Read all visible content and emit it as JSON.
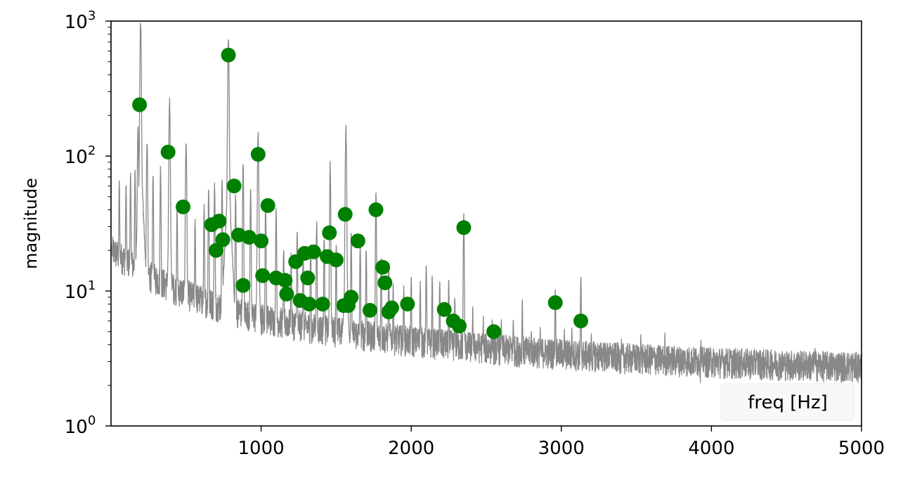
{
  "chart_data": {
    "type": "scatter",
    "title": "",
    "xlabel": "",
    "ylabel": "magnitude",
    "legend_label": "freq [Hz]",
    "legend_placement": "bottom-right",
    "xlim": [
      0,
      5000
    ],
    "ylim": [
      1,
      1000
    ],
    "yscale": "log",
    "grid": false,
    "xticks": [
      1000,
      2000,
      3000,
      4000,
      5000
    ],
    "yticks": [
      {
        "value": 1,
        "base": "10",
        "exp": "0"
      },
      {
        "value": 10,
        "base": "10",
        "exp": "1"
      },
      {
        "value": 100,
        "base": "10",
        "exp": "2"
      },
      {
        "value": 1000,
        "base": "10",
        "exp": "3"
      }
    ],
    "colors": {
      "spectrum": "#888888",
      "peaks": "#008000"
    },
    "spectrum_peaks": [
      {
        "x": 55,
        "y": 62
      },
      {
        "x": 100,
        "y": 58
      },
      {
        "x": 130,
        "y": 68
      },
      {
        "x": 160,
        "y": 75
      },
      {
        "x": 180,
        "y": 160
      },
      {
        "x": 197,
        "y": 950
      },
      {
        "x": 240,
        "y": 120
      },
      {
        "x": 280,
        "y": 70
      },
      {
        "x": 330,
        "y": 80
      },
      {
        "x": 390,
        "y": 250
      },
      {
        "x": 440,
        "y": 40
      },
      {
        "x": 500,
        "y": 120
      },
      {
        "x": 560,
        "y": 32
      },
      {
        "x": 620,
        "y": 40
      },
      {
        "x": 650,
        "y": 55
      },
      {
        "x": 690,
        "y": 60
      },
      {
        "x": 740,
        "y": 62
      },
      {
        "x": 782,
        "y": 720
      },
      {
        "x": 830,
        "y": 50
      },
      {
        "x": 880,
        "y": 90
      },
      {
        "x": 930,
        "y": 55
      },
      {
        "x": 980,
        "y": 140
      },
      {
        "x": 1030,
        "y": 45
      },
      {
        "x": 1100,
        "y": 40
      },
      {
        "x": 1150,
        "y": 20
      },
      {
        "x": 1200,
        "y": 18
      },
      {
        "x": 1240,
        "y": 26
      },
      {
        "x": 1280,
        "y": 20
      },
      {
        "x": 1330,
        "y": 22
      },
      {
        "x": 1370,
        "y": 30
      },
      {
        "x": 1420,
        "y": 25
      },
      {
        "x": 1460,
        "y": 85
      },
      {
        "x": 1500,
        "y": 22
      },
      {
        "x": 1565,
        "y": 155
      },
      {
        "x": 1600,
        "y": 25
      },
      {
        "x": 1660,
        "y": 22
      },
      {
        "x": 1700,
        "y": 20
      },
      {
        "x": 1765,
        "y": 50
      },
      {
        "x": 1800,
        "y": 18
      },
      {
        "x": 1850,
        "y": 15
      },
      {
        "x": 1880,
        "y": 11
      },
      {
        "x": 1950,
        "y": 10
      },
      {
        "x": 2000,
        "y": 12
      },
      {
        "x": 2060,
        "y": 11
      },
      {
        "x": 2100,
        "y": 16
      },
      {
        "x": 2140,
        "y": 12
      },
      {
        "x": 2190,
        "y": 11
      },
      {
        "x": 2250,
        "y": 11
      },
      {
        "x": 2290,
        "y": 9
      },
      {
        "x": 2350,
        "y": 35
      },
      {
        "x": 2410,
        "y": 7
      },
      {
        "x": 2480,
        "y": 6
      },
      {
        "x": 2540,
        "y": 6
      },
      {
        "x": 2600,
        "y": 6
      },
      {
        "x": 2680,
        "y": 6
      },
      {
        "x": 2740,
        "y": 8
      },
      {
        "x": 2800,
        "y": 5
      },
      {
        "x": 2860,
        "y": 5
      },
      {
        "x": 2960,
        "y": 10
      },
      {
        "x": 3020,
        "y": 5
      },
      {
        "x": 3070,
        "y": 5
      },
      {
        "x": 3130,
        "y": 12
      },
      {
        "x": 3200,
        "y": 4.5
      },
      {
        "x": 3280,
        "y": 4
      },
      {
        "x": 3400,
        "y": 4
      },
      {
        "x": 3530,
        "y": 4.5
      },
      {
        "x": 3690,
        "y": 4.5
      },
      {
        "x": 3930,
        "y": 4
      },
      {
        "x": 4100,
        "y": 3.5
      },
      {
        "x": 4300,
        "y": 3.4
      },
      {
        "x": 4500,
        "y": 3.3
      },
      {
        "x": 4690,
        "y": 3.8
      },
      {
        "x": 4850,
        "y": 3.2
      }
    ],
    "peak_points": [
      {
        "x": 190,
        "y": 240
      },
      {
        "x": 380,
        "y": 107
      },
      {
        "x": 480,
        "y": 42
      },
      {
        "x": 670,
        "y": 31
      },
      {
        "x": 700,
        "y": 20
      },
      {
        "x": 720,
        "y": 33
      },
      {
        "x": 745,
        "y": 24
      },
      {
        "x": 782,
        "y": 560
      },
      {
        "x": 820,
        "y": 60
      },
      {
        "x": 850,
        "y": 26
      },
      {
        "x": 880,
        "y": 11
      },
      {
        "x": 920,
        "y": 25
      },
      {
        "x": 980,
        "y": 103
      },
      {
        "x": 1000,
        "y": 23.5
      },
      {
        "x": 1010,
        "y": 13
      },
      {
        "x": 1045,
        "y": 43
      },
      {
        "x": 1100,
        "y": 12.5
      },
      {
        "x": 1160,
        "y": 12
      },
      {
        "x": 1170,
        "y": 9.5
      },
      {
        "x": 1230,
        "y": 16.5
      },
      {
        "x": 1260,
        "y": 8.5
      },
      {
        "x": 1290,
        "y": 19
      },
      {
        "x": 1310,
        "y": 12.5
      },
      {
        "x": 1320,
        "y": 8
      },
      {
        "x": 1350,
        "y": 19.5
      },
      {
        "x": 1410,
        "y": 8
      },
      {
        "x": 1440,
        "y": 18
      },
      {
        "x": 1455,
        "y": 27
      },
      {
        "x": 1500,
        "y": 17
      },
      {
        "x": 1550,
        "y": 7.8
      },
      {
        "x": 1560,
        "y": 37
      },
      {
        "x": 1580,
        "y": 7.8
      },
      {
        "x": 1600,
        "y": 9
      },
      {
        "x": 1645,
        "y": 23.5
      },
      {
        "x": 1725,
        "y": 7.2
      },
      {
        "x": 1765,
        "y": 40
      },
      {
        "x": 1810,
        "y": 15
      },
      {
        "x": 1825,
        "y": 11.5
      },
      {
        "x": 1850,
        "y": 7
      },
      {
        "x": 1870,
        "y": 7.5
      },
      {
        "x": 1975,
        "y": 8
      },
      {
        "x": 2220,
        "y": 7.3
      },
      {
        "x": 2280,
        "y": 6
      },
      {
        "x": 2320,
        "y": 5.5
      },
      {
        "x": 2350,
        "y": 29.5
      },
      {
        "x": 2550,
        "y": 5
      },
      {
        "x": 2960,
        "y": 8.2
      },
      {
        "x": 3130,
        "y": 6
      }
    ]
  }
}
